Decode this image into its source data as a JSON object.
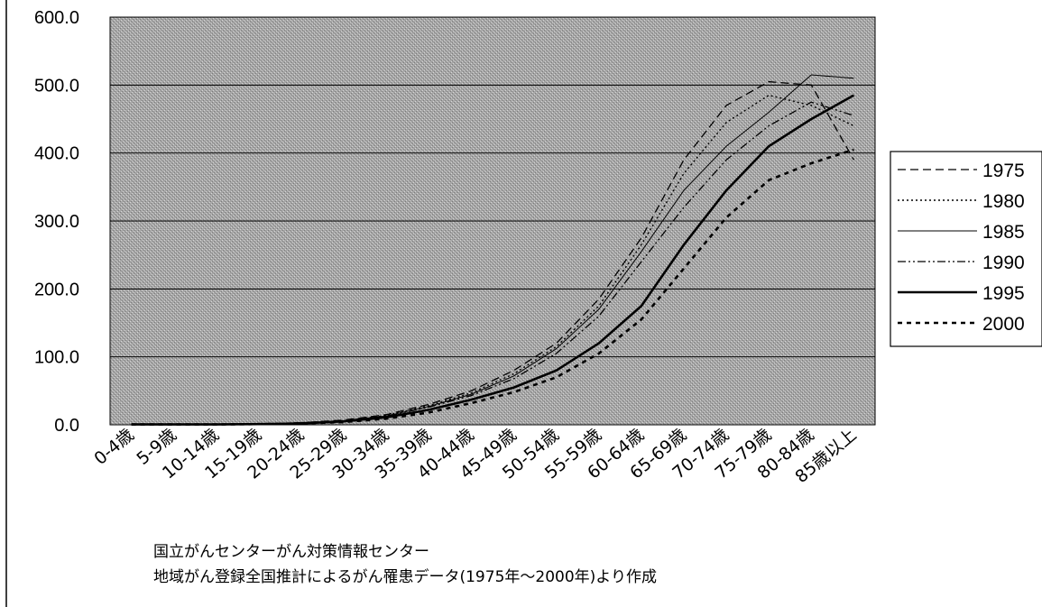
{
  "chart_data": {
    "type": "line",
    "categories": [
      "0-4歳",
      "5-9歳",
      "10-14歳",
      "15-19歳",
      "20-24歳",
      "25-29歳",
      "30-34歳",
      "35-39歳",
      "40-44歳",
      "45-49歳",
      "50-54歳",
      "55-59歳",
      "60-64歳",
      "65-69歳",
      "70-74歳",
      "75-79歳",
      "80-84歳",
      "85歳以上"
    ],
    "ylim": [
      0,
      600
    ],
    "yticks": [
      "0.0",
      "100.0",
      "200.0",
      "300.0",
      "400.0",
      "500.0",
      "600.0"
    ],
    "grid": true,
    "legend_position": "right",
    "series": [
      {
        "name": "1975",
        "style": "long-dash",
        "values": [
          0.5,
          0.5,
          0.5,
          1,
          3,
          7,
          15,
          30,
          50,
          80,
          120,
          185,
          275,
          390,
          470,
          505,
          500,
          390
        ]
      },
      {
        "name": "1980",
        "style": "dotted",
        "values": [
          0.5,
          0.5,
          0.5,
          1,
          3,
          6,
          14,
          28,
          47,
          75,
          115,
          175,
          265,
          370,
          445,
          485,
          470,
          440
        ]
      },
      {
        "name": "1985",
        "style": "thin-solid",
        "values": [
          0.5,
          0.5,
          0.5,
          1,
          3,
          6,
          13,
          27,
          45,
          72,
          112,
          170,
          255,
          345,
          410,
          460,
          515,
          510
        ]
      },
      {
        "name": "1990",
        "style": "dash-dot-dot",
        "values": [
          0.5,
          0.5,
          0.5,
          1,
          3,
          6,
          13,
          26,
          43,
          68,
          105,
          160,
          240,
          320,
          390,
          440,
          475,
          455
        ]
      },
      {
        "name": "1995",
        "style": "thick-solid",
        "values": [
          0.5,
          0.5,
          0.5,
          1,
          2,
          5,
          11,
          22,
          37,
          55,
          80,
          120,
          175,
          265,
          345,
          410,
          450,
          485
        ]
      },
      {
        "name": "2000",
        "style": "short-dash",
        "values": [
          0.5,
          0.5,
          0.5,
          1,
          2,
          4,
          9,
          18,
          32,
          48,
          70,
          105,
          155,
          230,
          305,
          360,
          385,
          405
        ]
      }
    ]
  },
  "source_note": {
    "line1": "国立がんセンターがん対策情報センター",
    "line2": "地域がん登録全国推計によるがん罹患データ(1975年〜2000年)より作成"
  }
}
